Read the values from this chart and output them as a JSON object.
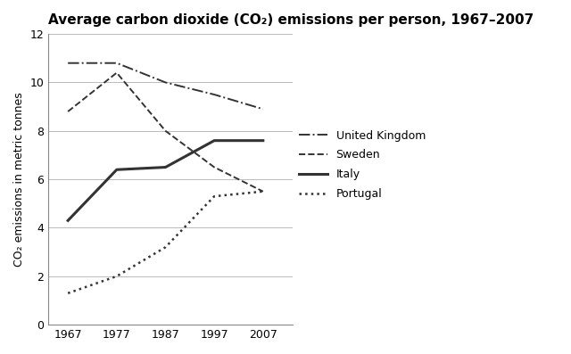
{
  "title": "Average carbon dioxide (CO₂) emissions per person, 1967–2007",
  "ylabel": "CO₂ emissions in metric tonnes",
  "years": [
    1967,
    1977,
    1987,
    1997,
    2007
  ],
  "series": {
    "United Kingdom": {
      "values": [
        10.8,
        10.8,
        10.0,
        9.5,
        8.9
      ],
      "linestyle": "-.",
      "color": "#333333",
      "linewidth": 1.4
    },
    "Sweden": {
      "values": [
        8.8,
        10.4,
        8.0,
        6.5,
        5.5
      ],
      "linestyle": "--",
      "color": "#333333",
      "linewidth": 1.4
    },
    "Italy": {
      "values": [
        4.3,
        6.4,
        6.5,
        7.6,
        7.6
      ],
      "linestyle": "-",
      "color": "#333333",
      "linewidth": 2.2
    },
    "Portugal": {
      "values": [
        1.3,
        2.0,
        3.2,
        5.3,
        5.5
      ],
      "linestyle": ":",
      "color": "#333333",
      "linewidth": 1.8
    }
  },
  "xlim": [
    1963,
    2013
  ],
  "ylim": [
    0,
    12
  ],
  "xticks": [
    1967,
    1977,
    1987,
    1997,
    2007
  ],
  "yticks": [
    0,
    2,
    4,
    6,
    8,
    10,
    12
  ],
  "grid_color": "#bbbbbb",
  "background_color": "#ffffff",
  "title_fontsize": 11,
  "label_fontsize": 9,
  "tick_fontsize": 9,
  "legend_fontsize": 9,
  "legend_handlelength": 2.5,
  "legend_labelspacing": 0.7
}
